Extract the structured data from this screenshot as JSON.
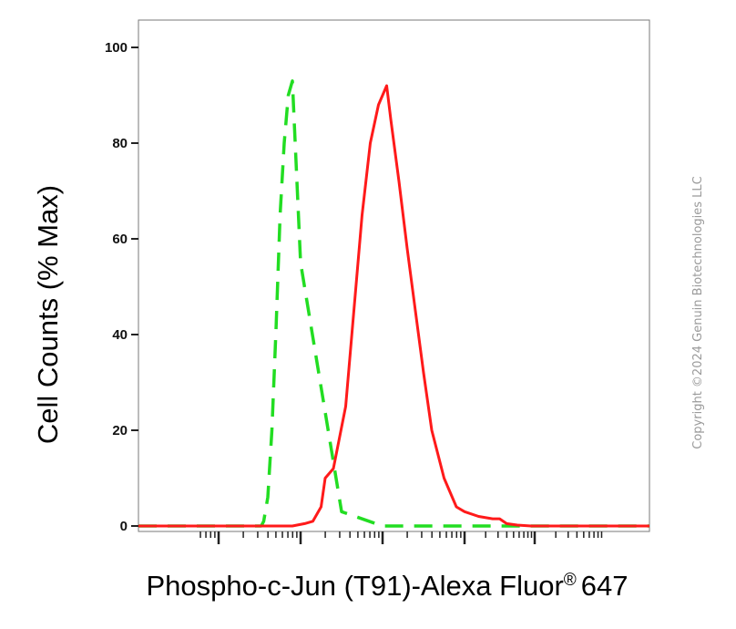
{
  "chart_data": {
    "type": "line",
    "title": "",
    "xlabel": "Phospho-c-Jun (T91)-Alexa Fluor",
    "xlabel_mark": "®",
    "xlabel_suffix": "647",
    "ylabel": "Cell Counts (% Max)",
    "x_scale": "log",
    "ylim": [
      0,
      100
    ],
    "y_ticks": [
      0,
      20,
      40,
      60,
      80,
      100
    ],
    "y_tick_labels": [
      "0",
      "20",
      "40",
      "60",
      "80",
      "100"
    ],
    "x_tick_labels": [],
    "grid": false,
    "legend": "none",
    "series": [
      {
        "color": "#22dd22",
        "style": "dashed",
        "x": [
          0.0,
          0.05,
          0.1,
          0.2,
          0.25,
          0.3,
          0.35,
          0.4,
          0.45,
          0.48,
          0.5,
          0.52,
          0.55,
          0.6,
          0.65,
          0.7,
          0.75,
          0.8,
          0.85,
          0.9,
          1.0,
          1.5,
          2.0,
          2.5,
          3.0,
          3.5,
          4.0,
          4.5,
          5.0
        ],
        "y": [
          0,
          0,
          0,
          0,
          0,
          0,
          0,
          0,
          0,
          0,
          0,
          0,
          1,
          6,
          20,
          41,
          65,
          80,
          90,
          93,
          55,
          3,
          0,
          0,
          0,
          0,
          0,
          0,
          0
        ]
      },
      {
        "color": "#ff1a1a",
        "style": "solid",
        "x": [
          0.0,
          0.5,
          0.9,
          1.05,
          1.15,
          1.25,
          1.3,
          1.4,
          1.55,
          1.65,
          1.75,
          1.85,
          1.95,
          2.05,
          2.1,
          2.2,
          2.3,
          2.4,
          2.5,
          2.6,
          2.75,
          2.9,
          3.0,
          3.2,
          3.4,
          3.5,
          3.6,
          3.75,
          3.95,
          4.2,
          4.5,
          5.0
        ],
        "y": [
          0,
          0,
          0,
          0.5,
          1,
          4,
          10,
          12,
          25,
          45,
          65,
          80,
          88,
          92,
          85,
          72,
          58,
          45,
          32,
          20,
          10,
          4,
          3,
          2,
          1.5,
          1.5,
          0.5,
          0.2,
          0,
          0,
          0,
          0
        ]
      }
    ]
  },
  "copyright": "Copyright ©2024 Genuin Biotechnologies LLC"
}
